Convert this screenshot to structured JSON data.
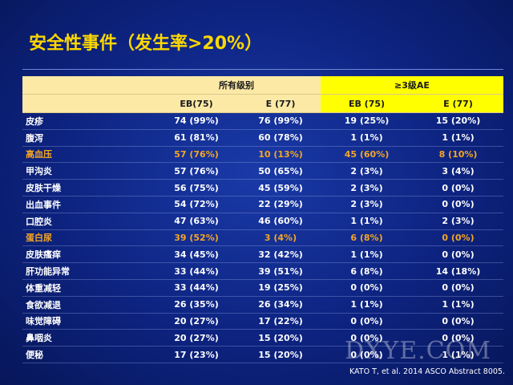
{
  "title": "安全性事件（发生率>20%）",
  "table": {
    "group_headers": [
      "所有级别",
      "≥3级AE"
    ],
    "sub_headers": [
      "EB(75)",
      "E (77)",
      "EB (75)",
      "E (77)"
    ],
    "highlight_color": "#f5a623",
    "highlight_rows": [
      2,
      7
    ],
    "rows": [
      [
        "皮疹",
        "74 (99%)",
        "76 (99%)",
        "19 (25%)",
        "15 (20%)"
      ],
      [
        "腹泻",
        "61 (81%)",
        "60 (78%)",
        "1 (1%)",
        "1 (1%)"
      ],
      [
        "高血压",
        "57 (76%)",
        "10 (13%)",
        "45 (60%)",
        "8 (10%)"
      ],
      [
        "甲沟炎",
        "57 (76%)",
        "50 (65%)",
        "2 (3%)",
        "3 (4%)"
      ],
      [
        "皮肤干燥",
        "56 (75%)",
        "45 (59%)",
        "2 (3%)",
        "0 (0%)"
      ],
      [
        "出血事件",
        "54 (72%)",
        "22 (29%)",
        "2 (3%)",
        "0 (0%)"
      ],
      [
        "口腔炎",
        "47 (63%)",
        "46 (60%)",
        "1 (1%)",
        "2 (3%)"
      ],
      [
        "蛋白尿",
        "39 (52%)",
        "3 (4%)",
        "6 (8%)",
        "0 (0%)"
      ],
      [
        "皮肤瘙痒",
        "34 (45%)",
        "32 (42%)",
        "1 (1%)",
        "0 (0%)"
      ],
      [
        "肝功能异常",
        "33 (44%)",
        "39 (51%)",
        "6 (8%)",
        "14 (18%)"
      ],
      [
        "体重减轻",
        "33 (44%)",
        "19 (25%)",
        "0 (0%)",
        "0 (0%)"
      ],
      [
        "食欲减退",
        "26 (35%)",
        "26 (34%)",
        "1 (1%)",
        "1 (1%)"
      ],
      [
        "味觉障碍",
        "20 (27%)",
        "17 (22%)",
        "0 (0%)",
        "0 (0%)"
      ],
      [
        "鼻咽炎",
        "20 (27%)",
        "15 (20%)",
        "0 (0%)",
        "0 (0%)"
      ],
      [
        "便秘",
        "17 (23%)",
        "15 (20%)",
        "0 (0%)",
        "1 (1%)"
      ]
    ]
  },
  "footnote": "KATO T, et al. 2014 ASCO Abstract 8005.",
  "watermark": "DXYE.COM"
}
